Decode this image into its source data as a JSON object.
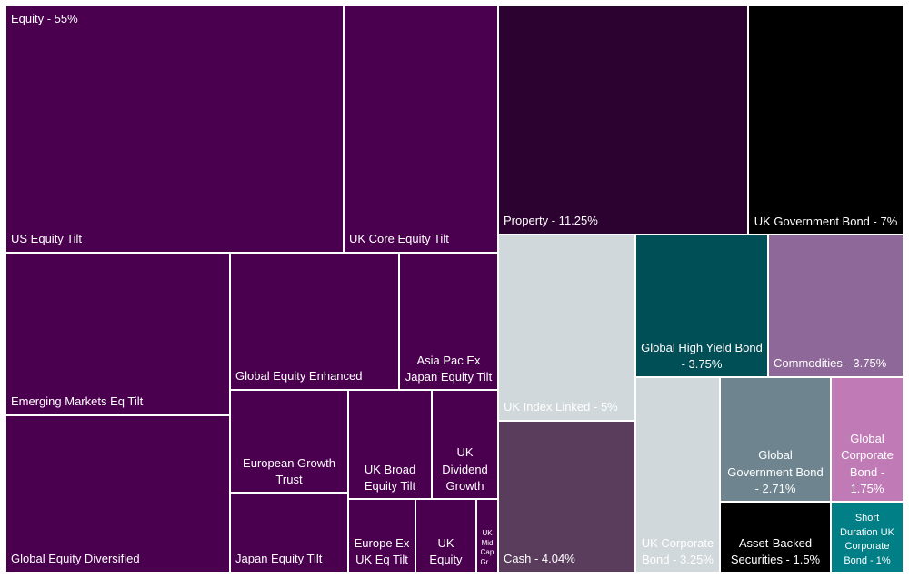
{
  "chart_data": {
    "type": "treemap",
    "groups": [
      {
        "label": "Equity - 55%",
        "color": "#4a004f"
      }
    ],
    "tiles": [
      {
        "label": "US Equity Tilt",
        "group": "Equity",
        "color": "#4a004f"
      },
      {
        "label": "UK Core Equity Tilt",
        "group": "Equity",
        "color": "#4a004f"
      },
      {
        "label": "Emerging Markets Eq Tilt",
        "group": "Equity",
        "color": "#4a004f"
      },
      {
        "label": "Global Equity Diversified",
        "group": "Equity",
        "color": "#4a004f"
      },
      {
        "label": "Global Equity Enhanced",
        "group": "Equity",
        "color": "#4a004f"
      },
      {
        "label": "Asia Pac Ex Japan Equity Tilt",
        "group": "Equity",
        "color": "#4a004f"
      },
      {
        "label": "European Growth Trust",
        "group": "Equity",
        "color": "#4a004f"
      },
      {
        "label": "UK Broad Equity Tilt",
        "group": "Equity",
        "color": "#4a004f"
      },
      {
        "label": "UK Dividend Growth",
        "group": "Equity",
        "color": "#4a004f"
      },
      {
        "label": "Japan Equity Tilt",
        "group": "Equity",
        "color": "#4a004f"
      },
      {
        "label": "Europe Ex UK Eq Tilt",
        "group": "Equity",
        "color": "#4a004f"
      },
      {
        "label": "UK Equity",
        "group": "Equity",
        "color": "#4a004f"
      },
      {
        "label": "UK Mid Cap Gr...",
        "group": "Equity",
        "color": "#4a004f"
      },
      {
        "label": "Property - 11.25%",
        "value": 11.25,
        "color": "#2c0230"
      },
      {
        "label": "UK Government Bond - 7%",
        "value": 7,
        "color": "#000000"
      },
      {
        "label": "UK Index Linked - 5%",
        "value": 5,
        "color": "#d1d8dc"
      },
      {
        "label": "Cash - 4.04%",
        "value": 4.04,
        "color": "#5a3c5c"
      },
      {
        "label": "Global High Yield Bond  - 3.75%",
        "value": 3.75,
        "color": "#004e56"
      },
      {
        "label": "Commodities - 3.75%",
        "value": 3.75,
        "color": "#8e6898"
      },
      {
        "label": "UK Corporate Bond - 3.25%",
        "value": 3.25,
        "color": "#d1d8dc"
      },
      {
        "label": "Global Government Bond - 2.71%",
        "value": 2.71,
        "color": "#6e8590"
      },
      {
        "label": "Global Corporate Bond - 1.75%",
        "value": 1.75,
        "color": "#c07bb6"
      },
      {
        "label": "Asset-Backed Securities - 1.5%",
        "value": 1.5,
        "color": "#000000"
      },
      {
        "label": "Short Duration UK Corporate Bond - 1%",
        "value": 1,
        "color": "#007f86"
      }
    ]
  }
}
